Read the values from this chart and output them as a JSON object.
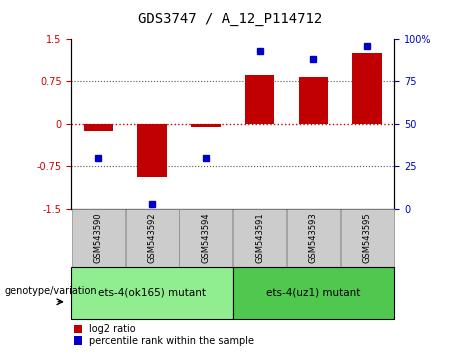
{
  "title": "GDS3747 / A_12_P114712",
  "samples": [
    "GSM543590",
    "GSM543592",
    "GSM543594",
    "GSM543591",
    "GSM543593",
    "GSM543595"
  ],
  "log2_ratio": [
    -0.13,
    -0.93,
    -0.05,
    0.87,
    0.82,
    1.25
  ],
  "percentile_rank": [
    30,
    3,
    30,
    93,
    88,
    96
  ],
  "bar_color": "#c00000",
  "dot_color": "#0000cc",
  "ylim_left": [
    -1.5,
    1.5
  ],
  "ylim_right": [
    0,
    100
  ],
  "yticks_left": [
    -1.5,
    -0.75,
    0,
    0.75,
    1.5
  ],
  "ytick_labels_left": [
    "-1.5",
    "-0.75",
    "0",
    "0.75",
    "1.5"
  ],
  "yticks_right": [
    0,
    25,
    50,
    75,
    100
  ],
  "ytick_labels_right": [
    "0",
    "25",
    "50",
    "75",
    "100%"
  ],
  "zero_line_color": "#cc0000",
  "dotted_line_color": "#555555",
  "group1_label": "ets-4(ok165) mutant",
  "group2_label": "ets-4(uz1) mutant",
  "group1_color": "#90ee90",
  "group2_color": "#50c850",
  "genotype_label": "genotype/variation",
  "legend_log2_label": "log2 ratio",
  "legend_pct_label": "percentile rank within the sample",
  "bar_width": 0.55,
  "tick_color_left": "#cc0000",
  "tick_color_right": "#0000cc",
  "sample_box_color": "#cccccc",
  "title_fontsize": 10,
  "tick_fontsize": 7,
  "sample_fontsize": 6,
  "legend_fontsize": 7,
  "genotype_fontsize": 7,
  "group_label_fontsize": 7.5,
  "dot_size": 4
}
